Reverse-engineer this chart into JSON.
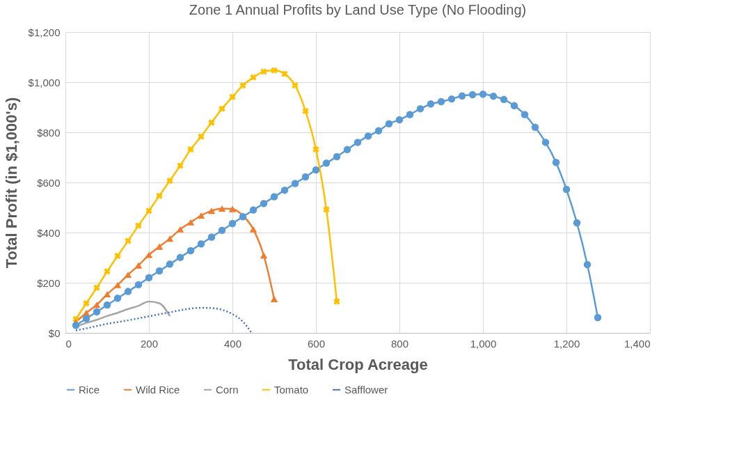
{
  "chart_data": {
    "type": "line",
    "title": "Zone 1 Annual Profits by Land Use Type (No Flooding)",
    "xlabel": "Total Crop Acreage",
    "ylabel": "Total Profit (in $1,000's)",
    "xlim": [
      0,
      1400
    ],
    "xticks": [
      0,
      200,
      400,
      600,
      800,
      {
        "value": 1000,
        "label": "1,000"
      },
      {
        "value": 1200,
        "label": "1,200"
      },
      {
        "value": 1400,
        "label": "1,400"
      }
    ],
    "ylim": [
      0,
      1200
    ],
    "yticks": [
      {
        "value": 0,
        "label": "$0"
      },
      {
        "value": 200,
        "label": "$200"
      },
      {
        "value": 400,
        "label": "$400"
      },
      {
        "value": 600,
        "label": "$600"
      },
      {
        "value": 800,
        "label": "$800"
      },
      {
        "value": 1000,
        "label": "$1,000"
      },
      {
        "value": 1200,
        "label": "$1,200"
      }
    ],
    "grid": true,
    "legend": "bottom",
    "series": [
      {
        "name": "Rice",
        "color": "#5b9bd5",
        "marker": "circle",
        "line_style": "solid",
        "x": [
          25,
          50,
          75,
          100,
          125,
          150,
          175,
          200,
          225,
          250,
          275,
          300,
          325,
          350,
          375,
          400,
          425,
          450,
          475,
          500,
          525,
          550,
          575,
          600,
          625,
          650,
          675,
          700,
          725,
          750,
          775,
          800,
          825,
          850,
          875,
          900,
          925,
          950,
          975,
          1000,
          1025,
          1050,
          1075,
          1100,
          1125,
          1150,
          1175,
          1200,
          1225,
          1250,
          1275
        ],
        "values": [
          30,
          57,
          84,
          111,
          138,
          165,
          192,
          220,
          247,
          274,
          301,
          328,
          355,
          382,
          409,
          436,
          463,
          490,
          516,
          543,
          569,
          596,
          622,
          650,
          677,
          703,
          731,
          760,
          785,
          806,
          834,
          850,
          871,
          894,
          913,
          922,
          933,
          945,
          950,
          952,
          944,
          931,
          906,
          871,
          820,
          760,
          680,
          572,
          439,
          272,
          61
        ]
      },
      {
        "name": "Wild Rice",
        "color": "#ed7d31",
        "marker": "triangle",
        "line_style": "solid",
        "x": [
          25,
          50,
          75,
          100,
          125,
          150,
          175,
          200,
          225,
          250,
          275,
          300,
          325,
          350,
          375,
          400,
          425,
          450,
          475,
          500
        ],
        "values": [
          43,
          80,
          112,
          154,
          191,
          232,
          269,
          311,
          344,
          376,
          413,
          441,
          468,
          487,
          496,
          494,
          468,
          413,
          309,
          135
        ]
      },
      {
        "name": "Corn",
        "color": "#a5a5a5",
        "marker": "none",
        "line_style": "solid",
        "x": [
          25,
          50,
          75,
          100,
          125,
          150,
          175,
          200,
          225,
          250
        ],
        "values": [
          25,
          40,
          52,
          67,
          80,
          95,
          108,
          125,
          118,
          67
        ]
      },
      {
        "name": "Tomato",
        "color": "#ffc000",
        "marker": "cross",
        "line_style": "solid",
        "x": [
          25,
          50,
          75,
          100,
          125,
          150,
          175,
          200,
          225,
          250,
          275,
          300,
          325,
          350,
          375,
          400,
          425,
          450,
          475,
          500,
          525,
          550,
          575,
          600,
          625,
          650
        ],
        "values": [
          55,
          118,
          180,
          245,
          307,
          367,
          428,
          487,
          547,
          607,
          667,
          732,
          783,
          839,
          894,
          941,
          987,
          1019,
          1042,
          1047,
          1033,
          987,
          885,
          732,
          492,
          125
        ]
      },
      {
        "name": "Safflower",
        "color": "#4472c4",
        "marker": "none",
        "line_style": "dotted",
        "x": [
          25,
          50,
          75,
          100,
          125,
          150,
          175,
          200,
          225,
          250,
          275,
          300,
          325,
          350,
          375,
          400,
          425,
          445
        ],
        "values": [
          10,
          18,
          27,
          36,
          43,
          50,
          58,
          66,
          74,
          82,
          90,
          97,
          100,
          99,
          92,
          75,
          45,
          2
        ]
      }
    ]
  }
}
